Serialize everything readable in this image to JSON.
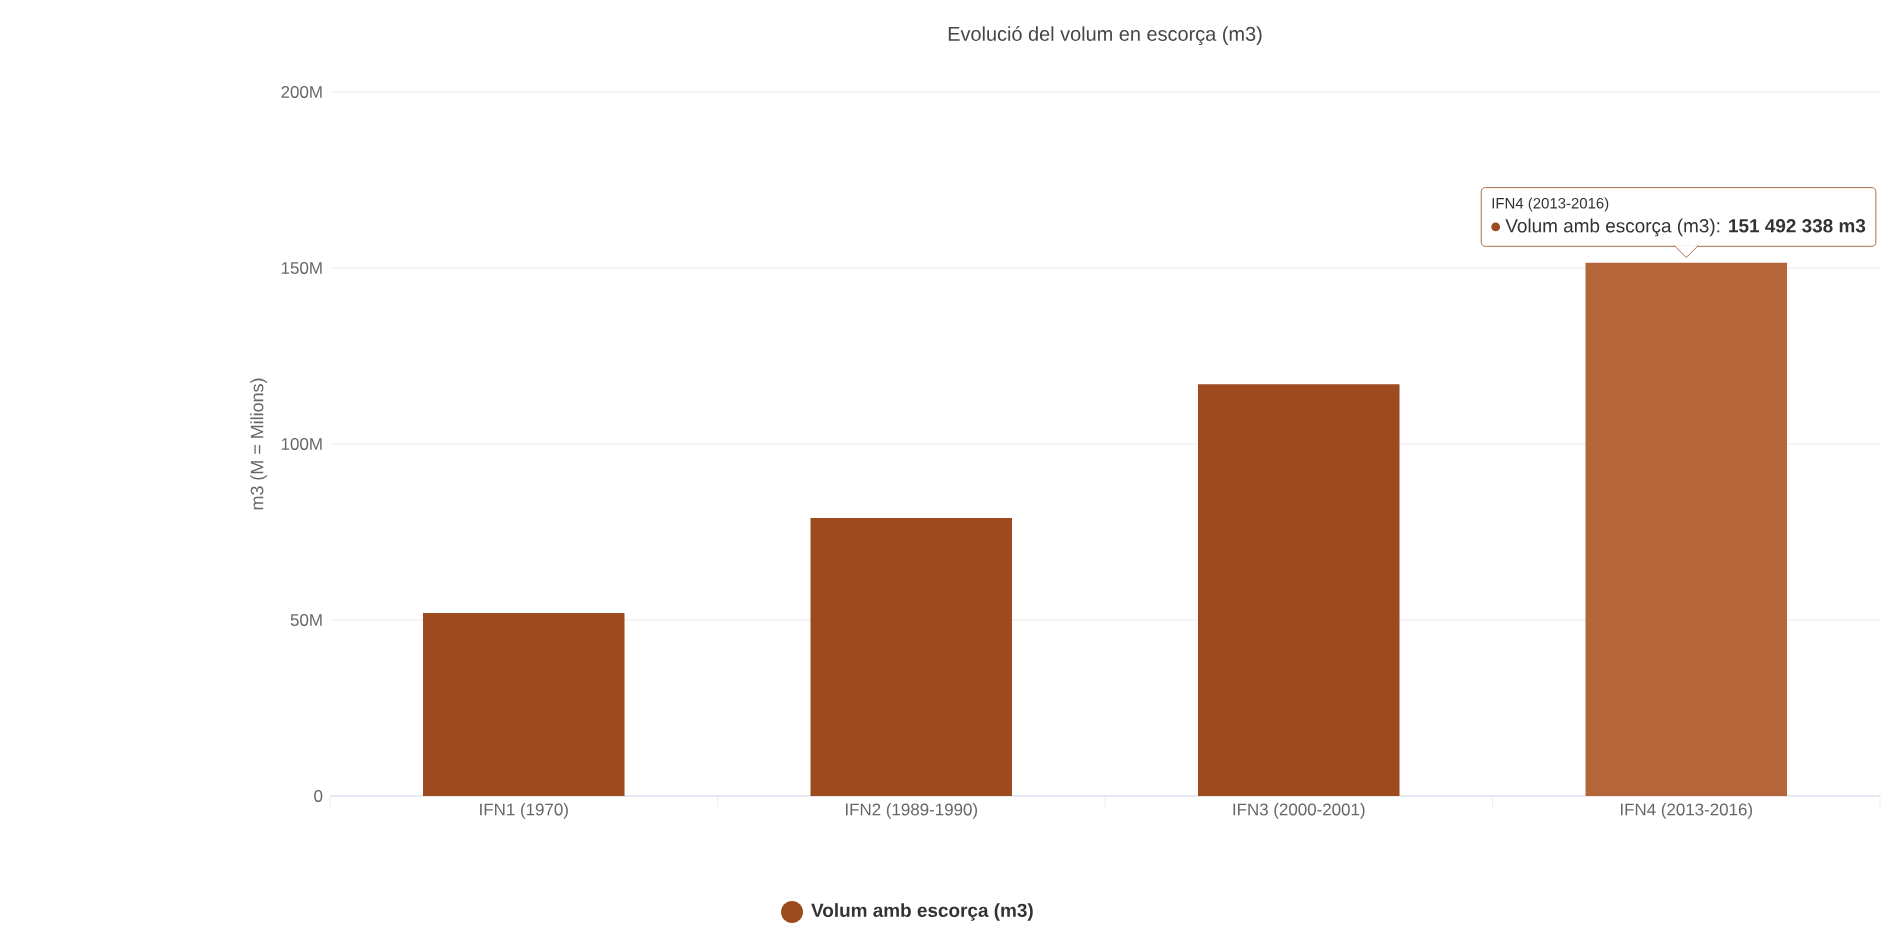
{
  "chart_data": {
    "type": "bar",
    "title": "Evolució del volum en escorça (m3)",
    "ylabel": "m3 (M = Milions)",
    "categories": [
      "IFN1 (1970)",
      "IFN2 (1989-1990)",
      "IFN3 (2000-2001)",
      "IFN4 (2013-2016)"
    ],
    "series": [
      {
        "name": "Volum amb escorça (m3)",
        "color": "#9c4a1e",
        "colors": [
          "#9c4a1e",
          "#9c4a1e",
          "#9c4a1e",
          "#b5653a"
        ],
        "values": [
          52000000,
          79000000,
          117000000,
          151492338
        ]
      }
    ],
    "ylim": [
      0,
      200000000
    ],
    "yticks": [
      0,
      {
        "value": 50000000,
        "label": "50M"
      },
      {
        "value": 100000000,
        "label": "100M"
      },
      {
        "value": 150000000,
        "label": "150M"
      },
      {
        "value": 200000000,
        "label": "200M"
      }
    ],
    "annotations": [
      "IFN4 (2013-2016)",
      "Volum amb escorça (m3): **151 492 338 m3**"
    ],
    "grid": "y",
    "legend": "bottom"
  }
}
